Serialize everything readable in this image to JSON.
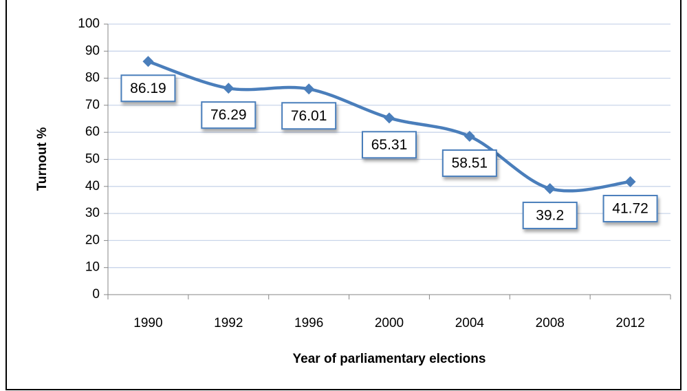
{
  "chart_data": {
    "type": "line",
    "x_label": "Year of parliamentary elections",
    "y_label": "Turnout %",
    "categories": [
      "1990",
      "1992",
      "1996",
      "2000",
      "2004",
      "2008",
      "2012"
    ],
    "series": [
      {
        "name": "Turnout",
        "color": "#4a7ebb",
        "values": [
          86.19,
          76.29,
          76.01,
          65.31,
          58.51,
          39.2,
          41.72
        ]
      }
    ],
    "ylim": [
      0,
      100
    ],
    "yticks": [
      0,
      10,
      20,
      30,
      40,
      50,
      60,
      70,
      80,
      90,
      100
    ],
    "grid": true,
    "smooth": true
  }
}
